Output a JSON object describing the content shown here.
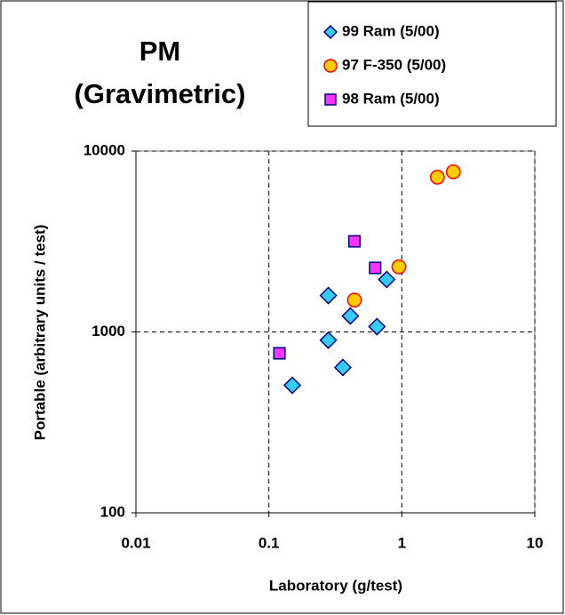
{
  "chart_data": {
    "type": "scatter",
    "title": "PM",
    "subtitle": "(Gravimetric)",
    "x_label": "Laboratory (g/test)",
    "y_label": "Portable (arbitrary units / test)",
    "xlog": true,
    "ylog": true,
    "xlim": [
      0.01,
      10
    ],
    "ylim": [
      100,
      10000
    ],
    "xticks": [
      0.01,
      0.1,
      1,
      10
    ],
    "yticks": [
      100,
      1000,
      10000
    ],
    "grid": true,
    "legend": "upper right",
    "series": [
      {
        "name": "99 Ram (5/00)",
        "color": "#33ccff",
        "marker": "diamond",
        "x": [
          0.28,
          0.41,
          0.77,
          0.65,
          0.28,
          0.36,
          0.15
        ],
        "values": [
          1590,
          1225,
          1950,
          1070,
          900,
          636,
          507
        ]
      },
      {
        "name": "97 F-350 (5/00)",
        "color": "#ffcc00",
        "edgecolor": "#ff0000",
        "marker": "circle",
        "x": [
          1.85,
          2.44,
          0.95,
          0.44
        ],
        "values": [
          7170,
          7680,
          2290,
          1500
        ]
      },
      {
        "name": "98 Ram (5/00)",
        "color": "#ff33ff",
        "marker": "square",
        "x": [
          0.44,
          0.63,
          0.12
        ],
        "values": [
          3170,
          2260,
          762
        ]
      }
    ]
  }
}
